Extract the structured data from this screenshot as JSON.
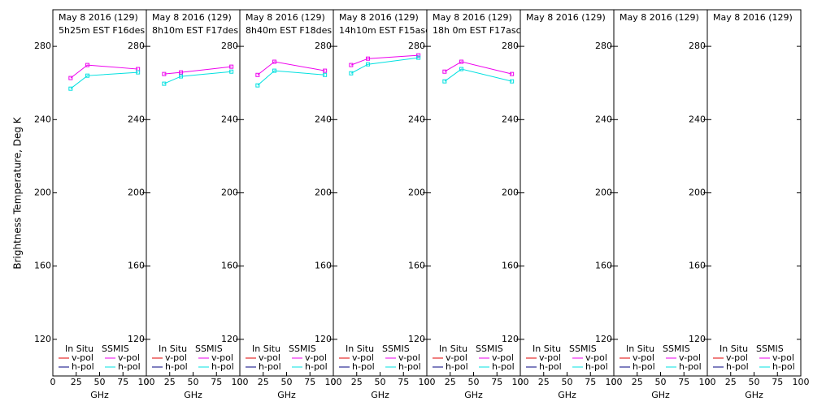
{
  "ylabel": "Brightness Temperature, Deg K",
  "chart_data": [
    {
      "type": "line",
      "title": "May 8 2016 (129)",
      "subtitle": "5h25m EST F16des",
      "xlabel": "GHz",
      "x": [
        19,
        37,
        91
      ],
      "xlim": [
        0,
        100
      ],
      "xticks": [
        0,
        25,
        50,
        75,
        100
      ],
      "ylim": [
        100,
        300
      ],
      "yticks": [
        120,
        160,
        200,
        240,
        280
      ],
      "legend_groups": [
        "In Situ",
        "SSMIS"
      ],
      "series": [
        {
          "group": 0,
          "name": "v-pol",
          "color": "#e00000",
          "values": [
            null,
            null,
            null
          ]
        },
        {
          "group": 0,
          "name": "h-pol",
          "color": "#000080",
          "values": [
            null,
            null,
            null
          ]
        },
        {
          "group": 1,
          "name": "v-pol",
          "color": "#ee00ee",
          "values": [
            262.7,
            269.8,
            267.6
          ]
        },
        {
          "group": 1,
          "name": "h-pol",
          "color": "#00e0e0",
          "values": [
            256.9,
            264,
            265.8
          ]
        }
      ]
    },
    {
      "type": "line",
      "title": "May 8 2016 (129)",
      "subtitle": "8h10m EST F17des",
      "xlabel": "GHz",
      "x": [
        19,
        37,
        91
      ],
      "xlim": [
        0,
        100
      ],
      "xticks": [
        0,
        25,
        50,
        75,
        100
      ],
      "ylim": [
        100,
        300
      ],
      "yticks": [
        120,
        160,
        200,
        240,
        280
      ],
      "legend_groups": [
        "In Situ",
        "SSMIS"
      ],
      "series": [
        {
          "group": 0,
          "name": "v-pol",
          "color": "#e00000",
          "values": [
            null,
            null,
            null
          ]
        },
        {
          "group": 0,
          "name": "h-pol",
          "color": "#000080",
          "values": [
            null,
            null,
            null
          ]
        },
        {
          "group": 1,
          "name": "v-pol",
          "color": "#ee00ee",
          "values": [
            264.9,
            265.8,
            268.9
          ]
        },
        {
          "group": 1,
          "name": "h-pol",
          "color": "#00e0e0",
          "values": [
            259.6,
            263.6,
            266.2
          ]
        }
      ]
    },
    {
      "type": "line",
      "title": "May 8 2016 (129)",
      "subtitle": "8h40m EST F18des",
      "xlabel": "GHz",
      "x": [
        19,
        37,
        91
      ],
      "xlim": [
        0,
        100
      ],
      "xticks": [
        0,
        25,
        50,
        75,
        100
      ],
      "ylim": [
        100,
        300
      ],
      "yticks": [
        120,
        160,
        200,
        240,
        280
      ],
      "legend_groups": [
        "In Situ",
        "SSMIS"
      ],
      "series": [
        {
          "group": 0,
          "name": "v-pol",
          "color": "#e00000",
          "values": [
            null,
            null,
            null
          ]
        },
        {
          "group": 0,
          "name": "h-pol",
          "color": "#000080",
          "values": [
            null,
            null,
            null
          ]
        },
        {
          "group": 1,
          "name": "v-pol",
          "color": "#ee00ee",
          "values": [
            264.4,
            271.6,
            266.7
          ]
        },
        {
          "group": 1,
          "name": "h-pol",
          "color": "#00e0e0",
          "values": [
            258.7,
            266.7,
            264.4
          ]
        }
      ]
    },
    {
      "type": "line",
      "title": "May 8 2016 (129)",
      "subtitle": "14h10m EST F15asc",
      "xlabel": "GHz",
      "x": [
        19,
        37,
        91
      ],
      "xlim": [
        0,
        100
      ],
      "xticks": [
        0,
        25,
        50,
        75,
        100
      ],
      "ylim": [
        100,
        300
      ],
      "yticks": [
        120,
        160,
        200,
        240,
        280
      ],
      "legend_groups": [
        "In Situ",
        "SSMIS"
      ],
      "series": [
        {
          "group": 0,
          "name": "v-pol",
          "color": "#e00000",
          "values": [
            null,
            null,
            null
          ]
        },
        {
          "group": 0,
          "name": "h-pol",
          "color": "#000080",
          "values": [
            null,
            null,
            null
          ]
        },
        {
          "group": 1,
          "name": "v-pol",
          "color": "#ee00ee",
          "values": [
            269.8,
            273.3,
            275.1
          ]
        },
        {
          "group": 1,
          "name": "h-pol",
          "color": "#00e0e0",
          "values": [
            265.3,
            270.2,
            273.8
          ]
        }
      ]
    },
    {
      "type": "line",
      "title": "May 8 2016 (129)",
      "subtitle": "18h 0m EST F17asc",
      "xlabel": "GHz",
      "x": [
        19,
        37,
        91
      ],
      "xlim": [
        0,
        100
      ],
      "xticks": [
        0,
        25,
        50,
        75,
        100
      ],
      "ylim": [
        100,
        300
      ],
      "yticks": [
        120,
        160,
        200,
        240,
        280
      ],
      "legend_groups": [
        "In Situ",
        "SSMIS"
      ],
      "series": [
        {
          "group": 0,
          "name": "v-pol",
          "color": "#e00000",
          "values": [
            null,
            null,
            null
          ]
        },
        {
          "group": 0,
          "name": "h-pol",
          "color": "#000080",
          "values": [
            null,
            null,
            null
          ]
        },
        {
          "group": 1,
          "name": "v-pol",
          "color": "#ee00ee",
          "values": [
            266.2,
            271.6,
            264.9
          ]
        },
        {
          "group": 1,
          "name": "h-pol",
          "color": "#00e0e0",
          "values": [
            260.9,
            267.6,
            260.9
          ]
        }
      ]
    },
    {
      "type": "line",
      "title": "May 8 2016 (129)",
      "xlabel": "GHz",
      "x": [
        19,
        37,
        91
      ],
      "xlim": [
        0,
        100
      ],
      "xticks": [
        0,
        25,
        50,
        75,
        100
      ],
      "ylim": [
        100,
        300
      ],
      "yticks": [
        120,
        160,
        200,
        240,
        280
      ],
      "legend_groups": [
        "In Situ",
        "SSMIS"
      ],
      "series": [
        {
          "group": 0,
          "name": "v-pol",
          "color": "#e00000",
          "values": [
            null,
            null,
            null
          ]
        },
        {
          "group": 0,
          "name": "h-pol",
          "color": "#000080",
          "values": [
            null,
            null,
            null
          ]
        },
        {
          "group": 1,
          "name": "v-pol",
          "color": "#ee00ee",
          "values": [
            null,
            null,
            null
          ]
        },
        {
          "group": 1,
          "name": "h-pol",
          "color": "#00e0e0",
          "values": [
            null,
            null,
            null
          ]
        }
      ]
    },
    {
      "type": "line",
      "title": "May 8 2016 (129)",
      "xlabel": "GHz",
      "x": [
        19,
        37,
        91
      ],
      "xlim": [
        0,
        100
      ],
      "xticks": [
        0,
        25,
        50,
        75,
        100
      ],
      "ylim": [
        100,
        300
      ],
      "yticks": [
        120,
        160,
        200,
        240,
        280
      ],
      "legend_groups": [
        "In Situ",
        "SSMIS"
      ],
      "series": [
        {
          "group": 0,
          "name": "v-pol",
          "color": "#e00000",
          "values": [
            null,
            null,
            null
          ]
        },
        {
          "group": 0,
          "name": "h-pol",
          "color": "#000080",
          "values": [
            null,
            null,
            null
          ]
        },
        {
          "group": 1,
          "name": "v-pol",
          "color": "#ee00ee",
          "values": [
            null,
            null,
            null
          ]
        },
        {
          "group": 1,
          "name": "h-pol",
          "color": "#00e0e0",
          "values": [
            null,
            null,
            null
          ]
        }
      ]
    },
    {
      "type": "line",
      "title": "May 8 2016 (129)",
      "xlabel": "GHz",
      "x": [
        19,
        37,
        91
      ],
      "xlim": [
        0,
        100
      ],
      "xticks": [
        0,
        25,
        50,
        75,
        100
      ],
      "ylim": [
        100,
        300
      ],
      "yticks": [
        120,
        160,
        200,
        240,
        280
      ],
      "legend_groups": [
        "In Situ",
        "SSMIS"
      ],
      "series": [
        {
          "group": 0,
          "name": "v-pol",
          "color": "#e00000",
          "values": [
            null,
            null,
            null
          ]
        },
        {
          "group": 0,
          "name": "h-pol",
          "color": "#000080",
          "values": [
            null,
            null,
            null
          ]
        },
        {
          "group": 1,
          "name": "v-pol",
          "color": "#ee00ee",
          "values": [
            null,
            null,
            null
          ]
        },
        {
          "group": 1,
          "name": "h-pol",
          "color": "#00e0e0",
          "values": [
            null,
            null,
            null
          ]
        }
      ]
    }
  ]
}
